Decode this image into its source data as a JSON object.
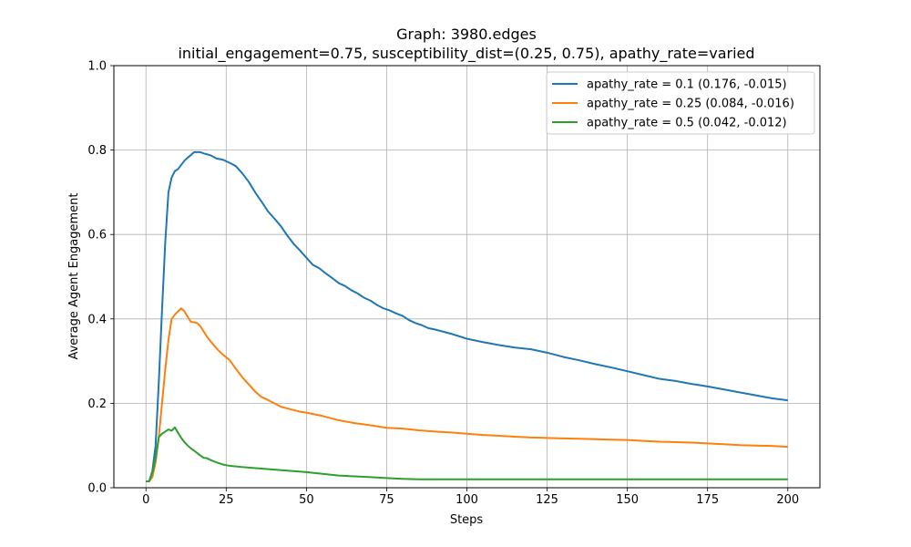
{
  "chart_data": {
    "type": "line",
    "title": "Graph: 3980.edges",
    "subtitle": "initial_engagement=0.75, susceptibility_dist=(0.25, 0.75), apathy_rate=varied",
    "xlabel": "Steps",
    "ylabel": "Average Agent Engagement",
    "xlim": [
      -10,
      210
    ],
    "ylim": [
      0.0,
      1.0
    ],
    "xticks": [
      0,
      25,
      50,
      75,
      100,
      125,
      150,
      175,
      200
    ],
    "xtick_labels": [
      "0",
      "25",
      "50",
      "75",
      "100",
      "125",
      "150",
      "175",
      "200"
    ],
    "yticks": [
      0.0,
      0.2,
      0.4,
      0.6,
      0.8,
      1.0
    ],
    "ytick_labels": [
      "0.0",
      "0.2",
      "0.4",
      "0.6",
      "0.8",
      "1.0"
    ],
    "grid": true,
    "legend_position": "top-right",
    "series": [
      {
        "name": "apathy_rate = 0.1 (0.176, -0.015)",
        "color": "#1f77b4",
        "points": [
          [
            0,
            0.015
          ],
          [
            1,
            0.015
          ],
          [
            2,
            0.04
          ],
          [
            3,
            0.1
          ],
          [
            4,
            0.25
          ],
          [
            5,
            0.42
          ],
          [
            6,
            0.58
          ],
          [
            7,
            0.7
          ],
          [
            8,
            0.735
          ],
          [
            9,
            0.75
          ],
          [
            10,
            0.755
          ],
          [
            11,
            0.765
          ],
          [
            12,
            0.775
          ],
          [
            13,
            0.782
          ],
          [
            14,
            0.788
          ],
          [
            15,
            0.795
          ],
          [
            16,
            0.795
          ],
          [
            17,
            0.795
          ],
          [
            18,
            0.792
          ],
          [
            19,
            0.79
          ],
          [
            20,
            0.788
          ],
          [
            22,
            0.78
          ],
          [
            24,
            0.777
          ],
          [
            26,
            0.77
          ],
          [
            28,
            0.762
          ],
          [
            30,
            0.745
          ],
          [
            32,
            0.725
          ],
          [
            34,
            0.7
          ],
          [
            36,
            0.678
          ],
          [
            38,
            0.655
          ],
          [
            40,
            0.638
          ],
          [
            42,
            0.62
          ],
          [
            44,
            0.598
          ],
          [
            46,
            0.578
          ],
          [
            48,
            0.562
          ],
          [
            50,
            0.545
          ],
          [
            52,
            0.528
          ],
          [
            54,
            0.52
          ],
          [
            56,
            0.508
          ],
          [
            58,
            0.497
          ],
          [
            60,
            0.485
          ],
          [
            62,
            0.478
          ],
          [
            64,
            0.468
          ],
          [
            66,
            0.46
          ],
          [
            68,
            0.45
          ],
          [
            70,
            0.443
          ],
          [
            72,
            0.433
          ],
          [
            74,
            0.425
          ],
          [
            76,
            0.42
          ],
          [
            78,
            0.413
          ],
          [
            80,
            0.407
          ],
          [
            82,
            0.397
          ],
          [
            84,
            0.39
          ],
          [
            86,
            0.385
          ],
          [
            88,
            0.378
          ],
          [
            90,
            0.375
          ],
          [
            95,
            0.365
          ],
          [
            100,
            0.353
          ],
          [
            105,
            0.345
          ],
          [
            110,
            0.338
          ],
          [
            115,
            0.332
          ],
          [
            120,
            0.328
          ],
          [
            125,
            0.32
          ],
          [
            130,
            0.31
          ],
          [
            135,
            0.302
          ],
          [
            140,
            0.293
          ],
          [
            145,
            0.285
          ],
          [
            150,
            0.276
          ],
          [
            155,
            0.267
          ],
          [
            160,
            0.258
          ],
          [
            165,
            0.253
          ],
          [
            170,
            0.246
          ],
          [
            175,
            0.24
          ],
          [
            180,
            0.233
          ],
          [
            185,
            0.226
          ],
          [
            190,
            0.219
          ],
          [
            195,
            0.212
          ],
          [
            200,
            0.207
          ]
        ]
      },
      {
        "name": "apathy_rate = 0.25 (0.084, -0.016)",
        "color": "#ff7f0e",
        "points": [
          [
            0,
            0.015
          ],
          [
            1,
            0.015
          ],
          [
            2,
            0.025
          ],
          [
            3,
            0.06
          ],
          [
            4,
            0.12
          ],
          [
            5,
            0.2
          ],
          [
            6,
            0.28
          ],
          [
            7,
            0.35
          ],
          [
            8,
            0.4
          ],
          [
            9,
            0.41
          ],
          [
            10,
            0.418
          ],
          [
            11,
            0.425
          ],
          [
            12,
            0.418
          ],
          [
            13,
            0.405
          ],
          [
            14,
            0.393
          ],
          [
            15,
            0.392
          ],
          [
            16,
            0.39
          ],
          [
            17,
            0.382
          ],
          [
            18,
            0.37
          ],
          [
            19,
            0.358
          ],
          [
            20,
            0.348
          ],
          [
            22,
            0.33
          ],
          [
            24,
            0.315
          ],
          [
            26,
            0.303
          ],
          [
            28,
            0.282
          ],
          [
            30,
            0.262
          ],
          [
            32,
            0.245
          ],
          [
            34,
            0.228
          ],
          [
            36,
            0.215
          ],
          [
            38,
            0.208
          ],
          [
            40,
            0.2
          ],
          [
            42,
            0.192
          ],
          [
            44,
            0.188
          ],
          [
            46,
            0.184
          ],
          [
            48,
            0.18
          ],
          [
            50,
            0.178
          ],
          [
            55,
            0.17
          ],
          [
            60,
            0.16
          ],
          [
            65,
            0.153
          ],
          [
            70,
            0.148
          ],
          [
            75,
            0.142
          ],
          [
            80,
            0.14
          ],
          [
            85,
            0.136
          ],
          [
            90,
            0.133
          ],
          [
            95,
            0.131
          ],
          [
            100,
            0.128
          ],
          [
            105,
            0.125
          ],
          [
            110,
            0.123
          ],
          [
            115,
            0.121
          ],
          [
            120,
            0.119
          ],
          [
            125,
            0.118
          ],
          [
            130,
            0.117
          ],
          [
            135,
            0.116
          ],
          [
            140,
            0.115
          ],
          [
            145,
            0.114
          ],
          [
            150,
            0.113
          ],
          [
            155,
            0.111
          ],
          [
            160,
            0.109
          ],
          [
            165,
            0.108
          ],
          [
            170,
            0.107
          ],
          [
            175,
            0.105
          ],
          [
            180,
            0.103
          ],
          [
            185,
            0.101
          ],
          [
            190,
            0.1
          ],
          [
            195,
            0.099
          ],
          [
            200,
            0.097
          ]
        ]
      },
      {
        "name": "apathy_rate = 0.5 (0.042, -0.012)",
        "color": "#2ca02c",
        "points": [
          [
            0,
            0.015
          ],
          [
            1,
            0.015
          ],
          [
            2,
            0.035
          ],
          [
            3,
            0.07
          ],
          [
            4,
            0.12
          ],
          [
            5,
            0.128
          ],
          [
            6,
            0.133
          ],
          [
            7,
            0.138
          ],
          [
            8,
            0.135
          ],
          [
            9,
            0.143
          ],
          [
            10,
            0.13
          ],
          [
            11,
            0.118
          ],
          [
            12,
            0.108
          ],
          [
            13,
            0.1
          ],
          [
            14,
            0.093
          ],
          [
            15,
            0.088
          ],
          [
            16,
            0.082
          ],
          [
            17,
            0.076
          ],
          [
            18,
            0.071
          ],
          [
            19,
            0.07
          ],
          [
            20,
            0.066
          ],
          [
            22,
            0.06
          ],
          [
            24,
            0.055
          ],
          [
            26,
            0.052
          ],
          [
            30,
            0.049
          ],
          [
            35,
            0.046
          ],
          [
            40,
            0.043
          ],
          [
            45,
            0.04
          ],
          [
            50,
            0.037
          ],
          [
            55,
            0.033
          ],
          [
            60,
            0.029
          ],
          [
            65,
            0.027
          ],
          [
            70,
            0.025
          ],
          [
            75,
            0.023
          ],
          [
            80,
            0.021
          ],
          [
            85,
            0.02
          ],
          [
            90,
            0.02
          ],
          [
            100,
            0.02
          ],
          [
            125,
            0.02
          ],
          [
            150,
            0.02
          ],
          [
            175,
            0.02
          ],
          [
            200,
            0.02
          ]
        ]
      }
    ]
  }
}
